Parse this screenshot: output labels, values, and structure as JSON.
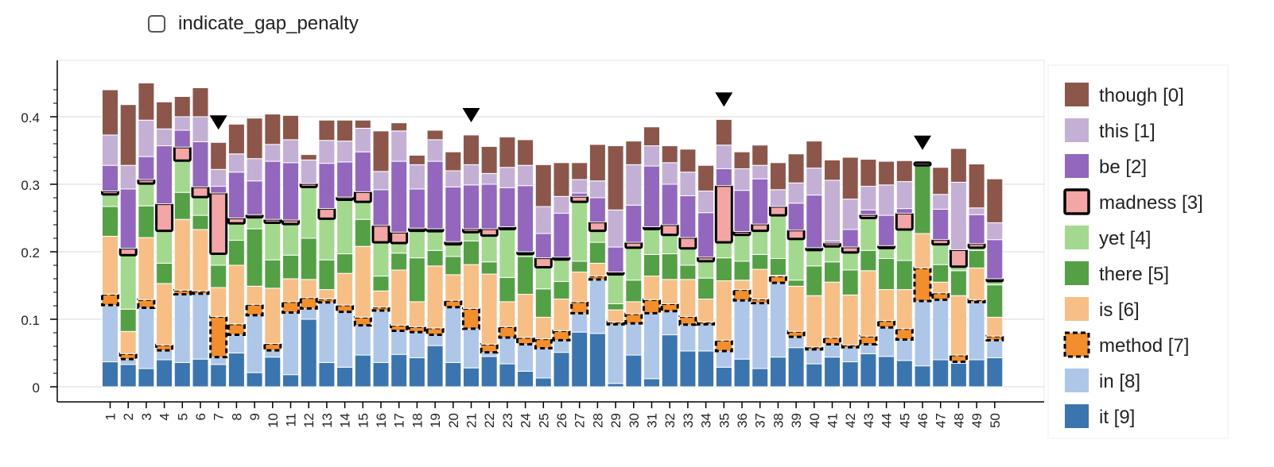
{
  "controls": {
    "gap_penalty_label": "indicate_gap_penalty",
    "gap_penalty_checked": false
  },
  "chart_data": {
    "type": "bar",
    "stacked": true,
    "x": [
      1,
      2,
      3,
      4,
      5,
      6,
      7,
      8,
      9,
      10,
      11,
      12,
      13,
      14,
      15,
      16,
      17,
      18,
      19,
      20,
      21,
      22,
      23,
      24,
      25,
      26,
      27,
      28,
      29,
      30,
      31,
      32,
      33,
      34,
      35,
      36,
      37,
      38,
      39,
      40,
      41,
      42,
      43,
      44,
      45,
      46,
      47,
      48,
      49,
      50
    ],
    "ylim": [
      -0.02,
      0.48
    ],
    "yticks": [
      0,
      0.1,
      0.2,
      0.3,
      0.4
    ],
    "ytick_labels": [
      "0",
      "0.1",
      "0.2",
      "0.3",
      "0.4"
    ],
    "grid": true,
    "legend_position": "right",
    "markers_at": [
      7,
      21,
      35,
      46
    ],
    "series": [
      {
        "name": "it [9]",
        "color": "#3b75af",
        "style": "plain",
        "values": [
          0.037,
          0.033,
          0.027,
          0.04,
          0.036,
          0.041,
          0.033,
          0.05,
          0.021,
          0.044,
          0.018,
          0.1,
          0.036,
          0.029,
          0.047,
          0.036,
          0.048,
          0.043,
          0.061,
          0.036,
          0.028,
          0.045,
          0.034,
          0.023,
          0.013,
          0.051,
          0.081,
          0.079,
          0.005,
          0.047,
          0.012,
          0.077,
          0.053,
          0.053,
          0.029,
          0.041,
          0.027,
          0.044,
          0.058,
          0.034,
          0.044,
          0.037,
          0.049,
          0.045,
          0.039,
          0.031,
          0.04,
          0.035,
          0.04,
          0.043
        ]
      },
      {
        "name": "in [8]",
        "color": "#aec7e8",
        "style": "plain",
        "values": [
          0.084,
          0.008,
          0.09,
          0.014,
          0.101,
          0.097,
          0.011,
          0.027,
          0.085,
          0.01,
          0.092,
          0.016,
          0.089,
          0.082,
          0.044,
          0.077,
          0.035,
          0.038,
          0.016,
          0.082,
          0.058,
          0.006,
          0.039,
          0.04,
          0.044,
          0.018,
          0.028,
          0.08,
          0.089,
          0.047,
          0.097,
          0.035,
          0.039,
          0.04,
          0.024,
          0.087,
          0.097,
          0.11,
          0.016,
          0.023,
          0.019,
          0.022,
          0.014,
          0.043,
          0.031,
          0.096,
          0.089,
          0.002,
          0.087,
          0.026
        ]
      },
      {
        "name": "method [7]",
        "color": "#f28e2c",
        "style": "dashed",
        "values": [
          0.016,
          0.008,
          0.012,
          0.008,
          0.006,
          0.004,
          0.06,
          0.016,
          0.016,
          0.01,
          0.016,
          0.016,
          0.005,
          0.01,
          0.012,
          0.005,
          0.008,
          0.008,
          0.01,
          0.01,
          0.03,
          0.012,
          0.016,
          0.01,
          0.014,
          0.014,
          0.017,
          0.005,
          0.002,
          0.014,
          0.02,
          0.011,
          0.012,
          0.003,
          0.016,
          0.016,
          0.006,
          0.01,
          0.008,
          0.002,
          0.01,
          0.003,
          0.012,
          0.01,
          0.016,
          0.049,
          0.01,
          0.01,
          0.002,
          0.006
        ]
      },
      {
        "name": "is [6]",
        "color": "#f7bf85",
        "style": "plain",
        "values": [
          0.086,
          0.033,
          0.092,
          0.091,
          0.105,
          0.091,
          0.043,
          0.087,
          0.027,
          0.082,
          0.034,
          0.027,
          0.014,
          0.047,
          0.105,
          0.024,
          0.082,
          0.037,
          0.092,
          0.038,
          0.065,
          0.104,
          0.037,
          0.064,
          0.032,
          0.047,
          0.044,
          0.019,
          0.018,
          0.018,
          0.035,
          0.036,
          0.055,
          0.034,
          0.088,
          0.014,
          0.044,
          0.001,
          0.067,
          0.076,
          0.082,
          0.074,
          0.097,
          0.046,
          0.058,
          0.051,
          0.016,
          0.088,
          0.047,
          0.028
        ]
      },
      {
        "name": "there [5]",
        "color": "#53a045",
        "style": "plain",
        "values": [
          0.044,
          0.033,
          0.047,
          0.03,
          0.04,
          0.021,
          0.033,
          0.037,
          0.085,
          0.042,
          0.035,
          0.061,
          0.044,
          0.029,
          0.04,
          0.022,
          0.025,
          0.065,
          0.023,
          0.027,
          0.035,
          0.018,
          0.036,
          0.056,
          0.042,
          0.026,
          0.016,
          0.031,
          0.009,
          0.032,
          0.032,
          0.038,
          0.021,
          0.031,
          0.034,
          0.028,
          0.022,
          0.025,
          0.009,
          0.044,
          0.03,
          0.037,
          0.03,
          0.046,
          0.043,
          0.1,
          0.026,
          0.037,
          0.026,
          0.048
        ]
      },
      {
        "name": "yet [4]",
        "color": "#a3d98f",
        "style": "plain",
        "values": [
          0.018,
          0.08,
          0.033,
          0.048,
          0.047,
          0.027,
          0.017,
          0.025,
          0.017,
          0.055,
          0.046,
          0.076,
          0.061,
          0.08,
          0.026,
          0.05,
          0.015,
          0.04,
          0.031,
          0.018,
          0.013,
          0.039,
          0.073,
          0.005,
          0.032,
          0.034,
          0.088,
          0.017,
          0.045,
          0.048,
          0.038,
          0.028,
          0.025,
          0.025,
          0.023,
          0.039,
          0.035,
          0.064,
          0.061,
          0.025,
          0.023,
          0.026,
          0.048,
          0.017,
          0.046,
          0.001,
          0.03,
          0.006,
          0.004,
          0.006
        ]
      },
      {
        "name": "madness [3]",
        "color": "#f4a6a6",
        "style": "bold",
        "values": [
          0.005,
          0.01,
          0.006,
          0.04,
          0.02,
          0.015,
          0.09,
          0.008,
          0.004,
          0.005,
          0.006,
          0.005,
          0.015,
          0.004,
          0.015,
          0.025,
          0.016,
          0.004,
          0.001,
          0.004,
          0.005,
          0.01,
          0.002,
          0.002,
          0.014,
          0.002,
          0.008,
          0.013,
          0.002,
          0.008,
          0.003,
          0.015,
          0.016,
          0.006,
          0.084,
          0.005,
          0.01,
          0.013,
          0.013,
          0.002,
          0.005,
          0.008,
          0.005,
          0.002,
          0.024,
          0.004,
          0.007,
          0.025,
          0.006,
          0.003
        ]
      },
      {
        "name": "be [2]",
        "color": "#9367bd",
        "style": "plain",
        "values": [
          0.038,
          0.088,
          0.034,
          0.086,
          0.025,
          0.067,
          0.01,
          0.068,
          0.05,
          0.086,
          0.085,
          0.0,
          0.067,
          0.052,
          0.059,
          0.053,
          0.105,
          0.058,
          0.1,
          0.081,
          0.065,
          0.066,
          0.058,
          0.098,
          0.036,
          0.065,
          0.005,
          0.036,
          0.037,
          0.055,
          0.09,
          0.06,
          0.062,
          0.066,
          0.025,
          0.061,
          0.067,
          0.0,
          0.04,
          0.078,
          0.003,
          0.026,
          0.007,
          0.045,
          0.007,
          0.0,
          0.045,
          0.0,
          0.043,
          0.058
        ]
      },
      {
        "name": "this [1]",
        "color": "#c5b0d5",
        "style": "plain",
        "values": [
          0.045,
          0.035,
          0.054,
          0.025,
          0.02,
          0.037,
          0.025,
          0.027,
          0.033,
          0.025,
          0.034,
          0.035,
          0.034,
          0.031,
          0.035,
          0.027,
          0.045,
          0.036,
          0.032,
          0.024,
          0.03,
          0.016,
          0.03,
          0.03,
          0.04,
          0.025,
          0.02,
          0.025,
          0.055,
          0.06,
          0.03,
          0.032,
          0.035,
          0.032,
          0.035,
          0.032,
          0.02,
          0.025,
          0.03,
          0.04,
          0.09,
          0.045,
          0.035,
          0.045,
          0.04,
          0.0,
          0.022,
          0.1,
          0.01,
          0.025
        ]
      },
      {
        "name": "though [0]",
        "color": "#8c564b",
        "style": "plain",
        "values": [
          0.067,
          0.09,
          0.055,
          0.04,
          0.03,
          0.043,
          0.04,
          0.044,
          0.06,
          0.045,
          0.036,
          0.008,
          0.03,
          0.031,
          0.012,
          0.06,
          0.012,
          0.014,
          0.014,
          0.028,
          0.044,
          0.04,
          0.045,
          0.038,
          0.062,
          0.05,
          0.025,
          0.054,
          0.095,
          0.035,
          0.028,
          0.025,
          0.034,
          0.038,
          0.038,
          0.025,
          0.03,
          0.04,
          0.043,
          0.04,
          0.03,
          0.062,
          0.04,
          0.035,
          0.031,
          0.0,
          0.04,
          0.05,
          0.065,
          0.065
        ]
      }
    ]
  }
}
